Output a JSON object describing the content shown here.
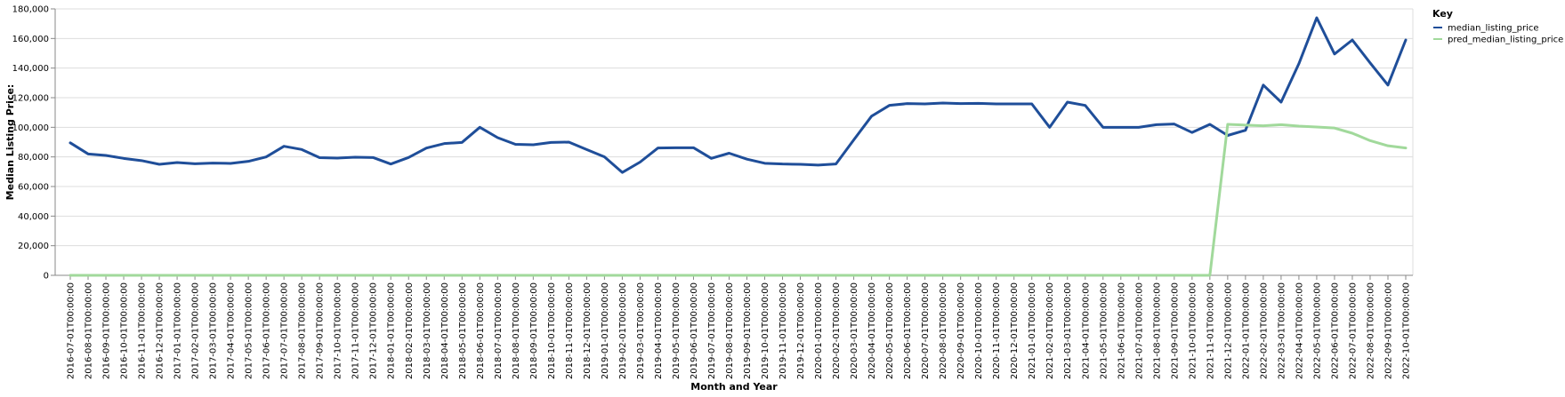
{
  "chart_data": {
    "type": "line",
    "xlabel": "Month and Year",
    "ylabel": "Median Listing Price:",
    "ylim": [
      0,
      180000
    ],
    "yticks": [
      0,
      20000,
      40000,
      60000,
      80000,
      100000,
      120000,
      140000,
      160000,
      180000
    ],
    "ytick_labels": [
      "0",
      "20,000",
      "40,000",
      "60,000",
      "80,000",
      "100,000",
      "120,000",
      "140,000",
      "160,000",
      "180,000"
    ],
    "grid": true,
    "legend": {
      "title": "Key",
      "position": "top-right"
    },
    "x": [
      "2016-07-01T00:00:00",
      "2016-08-01T00:00:00",
      "2016-09-01T00:00:00",
      "2016-10-01T00:00:00",
      "2016-11-01T00:00:00",
      "2016-12-01T00:00:00",
      "2017-01-01T00:00:00",
      "2017-02-01T00:00:00",
      "2017-03-01T00:00:00",
      "2017-04-01T00:00:00",
      "2017-05-01T00:00:00",
      "2017-06-01T00:00:00",
      "2017-07-01T00:00:00",
      "2017-08-01T00:00:00",
      "2017-09-01T00:00:00",
      "2017-10-01T00:00:00",
      "2017-11-01T00:00:00",
      "2017-12-01T00:00:00",
      "2018-01-01T00:00:00",
      "2018-02-01T00:00:00",
      "2018-03-01T00:00:00",
      "2018-04-01T00:00:00",
      "2018-05-01T00:00:00",
      "2018-06-01T00:00:00",
      "2018-07-01T00:00:00",
      "2018-08-01T00:00:00",
      "2018-09-01T00:00:00",
      "2018-10-01T00:00:00",
      "2018-11-01T00:00:00",
      "2018-12-01T00:00:00",
      "2019-01-01T00:00:00",
      "2019-02-01T00:00:00",
      "2019-03-01T00:00:00",
      "2019-04-01T00:00:00",
      "2019-05-01T00:00:00",
      "2019-06-01T00:00:00",
      "2019-07-01T00:00:00",
      "2019-08-01T00:00:00",
      "2019-09-01T00:00:00",
      "2019-10-01T00:00:00",
      "2019-11-01T00:00:00",
      "2019-12-01T00:00:00",
      "2020-01-01T00:00:00",
      "2020-02-01T00:00:00",
      "2020-03-01T00:00:00",
      "2020-04-01T00:00:00",
      "2020-05-01T00:00:00",
      "2020-06-01T00:00:00",
      "2020-07-01T00:00:00",
      "2020-08-01T00:00:00",
      "2020-09-01T00:00:00",
      "2020-10-01T00:00:00",
      "2020-11-01T00:00:00",
      "2020-12-01T00:00:00",
      "2021-01-01T00:00:00",
      "2021-02-01T00:00:00",
      "2021-03-01T00:00:00",
      "2021-04-01T00:00:00",
      "2021-05-01T00:00:00",
      "2021-06-01T00:00:00",
      "2021-07-01T00:00:00",
      "2021-08-01T00:00:00",
      "2021-09-01T00:00:00",
      "2021-10-01T00:00:00",
      "2021-11-01T00:00:00",
      "2021-12-01T00:00:00",
      "2022-01-01T00:00:00",
      "2022-02-01T00:00:00",
      "2022-03-01T00:00:00",
      "2022-04-01T00:00:00",
      "2022-05-01T00:00:00",
      "2022-06-01T00:00:00",
      "2022-07-01T00:00:00",
      "2022-08-01T00:00:00",
      "2022-09-01T00:00:00",
      "2022-10-01T00:00:00"
    ],
    "series": [
      {
        "name": "median_listing_price",
        "color": "#1f4e99",
        "values": [
          89500,
          82000,
          81000,
          79000,
          77500,
          75000,
          76200,
          75400,
          75800,
          75600,
          77000,
          80000,
          87200,
          85000,
          79500,
          79200,
          79800,
          79600,
          75200,
          79600,
          86000,
          89000,
          89800,
          100000,
          93000,
          88500,
          88200,
          89800,
          90000,
          85000,
          80000,
          69500,
          76500,
          86000,
          86200,
          86200,
          79000,
          82500,
          78500,
          75700,
          75200,
          75000,
          74500,
          75200,
          91500,
          107500,
          114800,
          116000,
          115800,
          116400,
          116000,
          116200,
          115800,
          115800,
          115800,
          100000,
          117000,
          114800,
          100000,
          100000,
          100000,
          101800,
          102200,
          96500,
          102000,
          94500,
          98000,
          128500,
          117000,
          143000,
          174000,
          149500,
          159000,
          143500,
          128500,
          159000
        ]
      },
      {
        "name": "pred_median_listing_price",
        "color": "#a1d99b",
        "values": [
          0,
          0,
          0,
          0,
          0,
          0,
          0,
          0,
          0,
          0,
          0,
          0,
          0,
          0,
          0,
          0,
          0,
          0,
          0,
          0,
          0,
          0,
          0,
          0,
          0,
          0,
          0,
          0,
          0,
          0,
          0,
          0,
          0,
          0,
          0,
          0,
          0,
          0,
          0,
          0,
          0,
          0,
          0,
          0,
          0,
          0,
          0,
          0,
          0,
          0,
          0,
          0,
          0,
          0,
          0,
          0,
          0,
          0,
          0,
          0,
          0,
          0,
          0,
          0,
          0,
          102000,
          101500,
          101000,
          101800,
          100800,
          100200,
          99500,
          96000,
          91000,
          87500,
          86000
        ]
      }
    ]
  }
}
